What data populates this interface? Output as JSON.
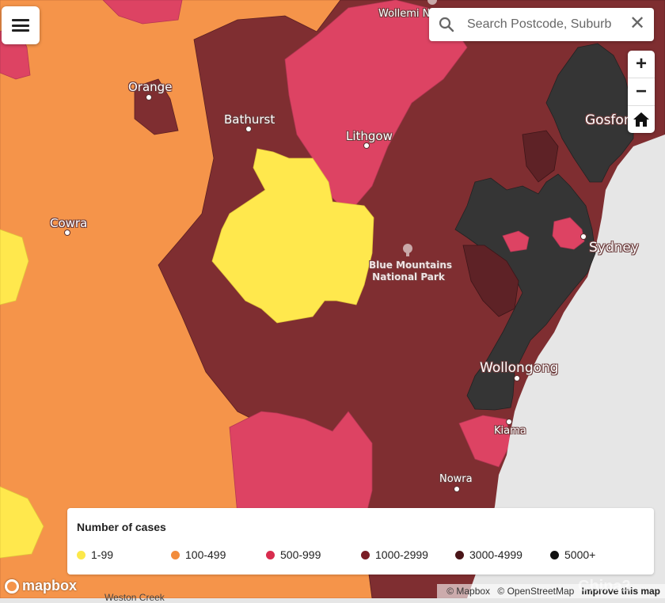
{
  "map": {
    "colors": {
      "ocean": "#e6e6e6",
      "band_1_99": "#ffe84d",
      "band_100_499": "#f5944a",
      "band_500_999": "#dd4363",
      "band_1000_2999": "#7f2e31",
      "band_3000_4999": "#5e2226",
      "band_5000_plus": "#353535"
    },
    "places": [
      {
        "key": "orange",
        "name": "Orange"
      },
      {
        "key": "bathurst",
        "name": "Bathurst"
      },
      {
        "key": "lithgow",
        "name": "Lithgow"
      },
      {
        "key": "cowra",
        "name": "Cowra"
      },
      {
        "key": "gosford",
        "name": "Gosfor"
      },
      {
        "key": "sydney",
        "name": "Sydney"
      },
      {
        "key": "wollongong",
        "name": "Wollongong"
      },
      {
        "key": "kiama",
        "name": "Kiama"
      },
      {
        "key": "nowra",
        "name": "Nowra"
      },
      {
        "key": "wollemi",
        "name": "Wollemi N"
      },
      {
        "key": "park1",
        "name": "Blue Mountains"
      },
      {
        "key": "park2",
        "name": "National Park"
      },
      {
        "key": "weston",
        "name": "Weston Creek"
      }
    ]
  },
  "menu": {
    "icon": "hamburger-menu-icon"
  },
  "search": {
    "placeholder": "Search Postcode, Suburb",
    "value": "",
    "icon": "search-icon",
    "clear_icon": "close-icon"
  },
  "zoom": {
    "in_label": "+",
    "out_label": "−",
    "home_icon": "home-icon"
  },
  "legend": {
    "title": "Number of cases",
    "items": [
      {
        "label": "1-99",
        "color": "#fce84a"
      },
      {
        "label": "100-499",
        "color": "#f28c3c"
      },
      {
        "label": "500-999",
        "color": "#d82c4e"
      },
      {
        "label": "1000-2999",
        "color": "#7a1d24"
      },
      {
        "label": "3000-4999",
        "color": "#4a1518"
      },
      {
        "label": "5000+",
        "color": "#111111"
      }
    ]
  },
  "branding": {
    "logo_text": "mapbox"
  },
  "attribution": {
    "mapbox": "© Mapbox",
    "osm": "© OpenStreetMap",
    "improve": "Improve this map"
  },
  "watermark": {
    "text": "China2"
  }
}
